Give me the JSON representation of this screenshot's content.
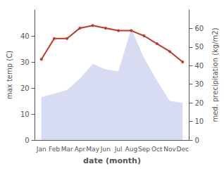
{
  "chart_data": {
    "type": "line",
    "categories": [
      "Jan",
      "Feb",
      "Mar",
      "Apr",
      "May",
      "Jun",
      "Jul",
      "Aug",
      "Sep",
      "Oct",
      "Nov",
      "Dec"
    ],
    "xlabel": "date (month)",
    "ylabel": "max temp (C)",
    "y2label": "med. precipitation (kg/m2)",
    "ylim": [
      0,
      50
    ],
    "yticks": [
      0,
      10,
      20,
      30,
      40
    ],
    "y2lim": [
      0,
      70
    ],
    "y2ticks": [
      0,
      10,
      20,
      30,
      40,
      50,
      60
    ],
    "grid": false,
    "series": [
      {
        "type": "area",
        "axis": "y2",
        "color": "#b8bfe8",
        "values": [
          23,
          25,
          27,
          33,
          41,
          38,
          37,
          60,
          44,
          32,
          21,
          20
        ]
      },
      {
        "type": "line",
        "color": "#c0392b",
        "values": [
          31,
          39,
          39,
          43,
          44,
          43,
          42,
          42,
          40,
          37,
          34,
          30
        ]
      }
    ]
  }
}
